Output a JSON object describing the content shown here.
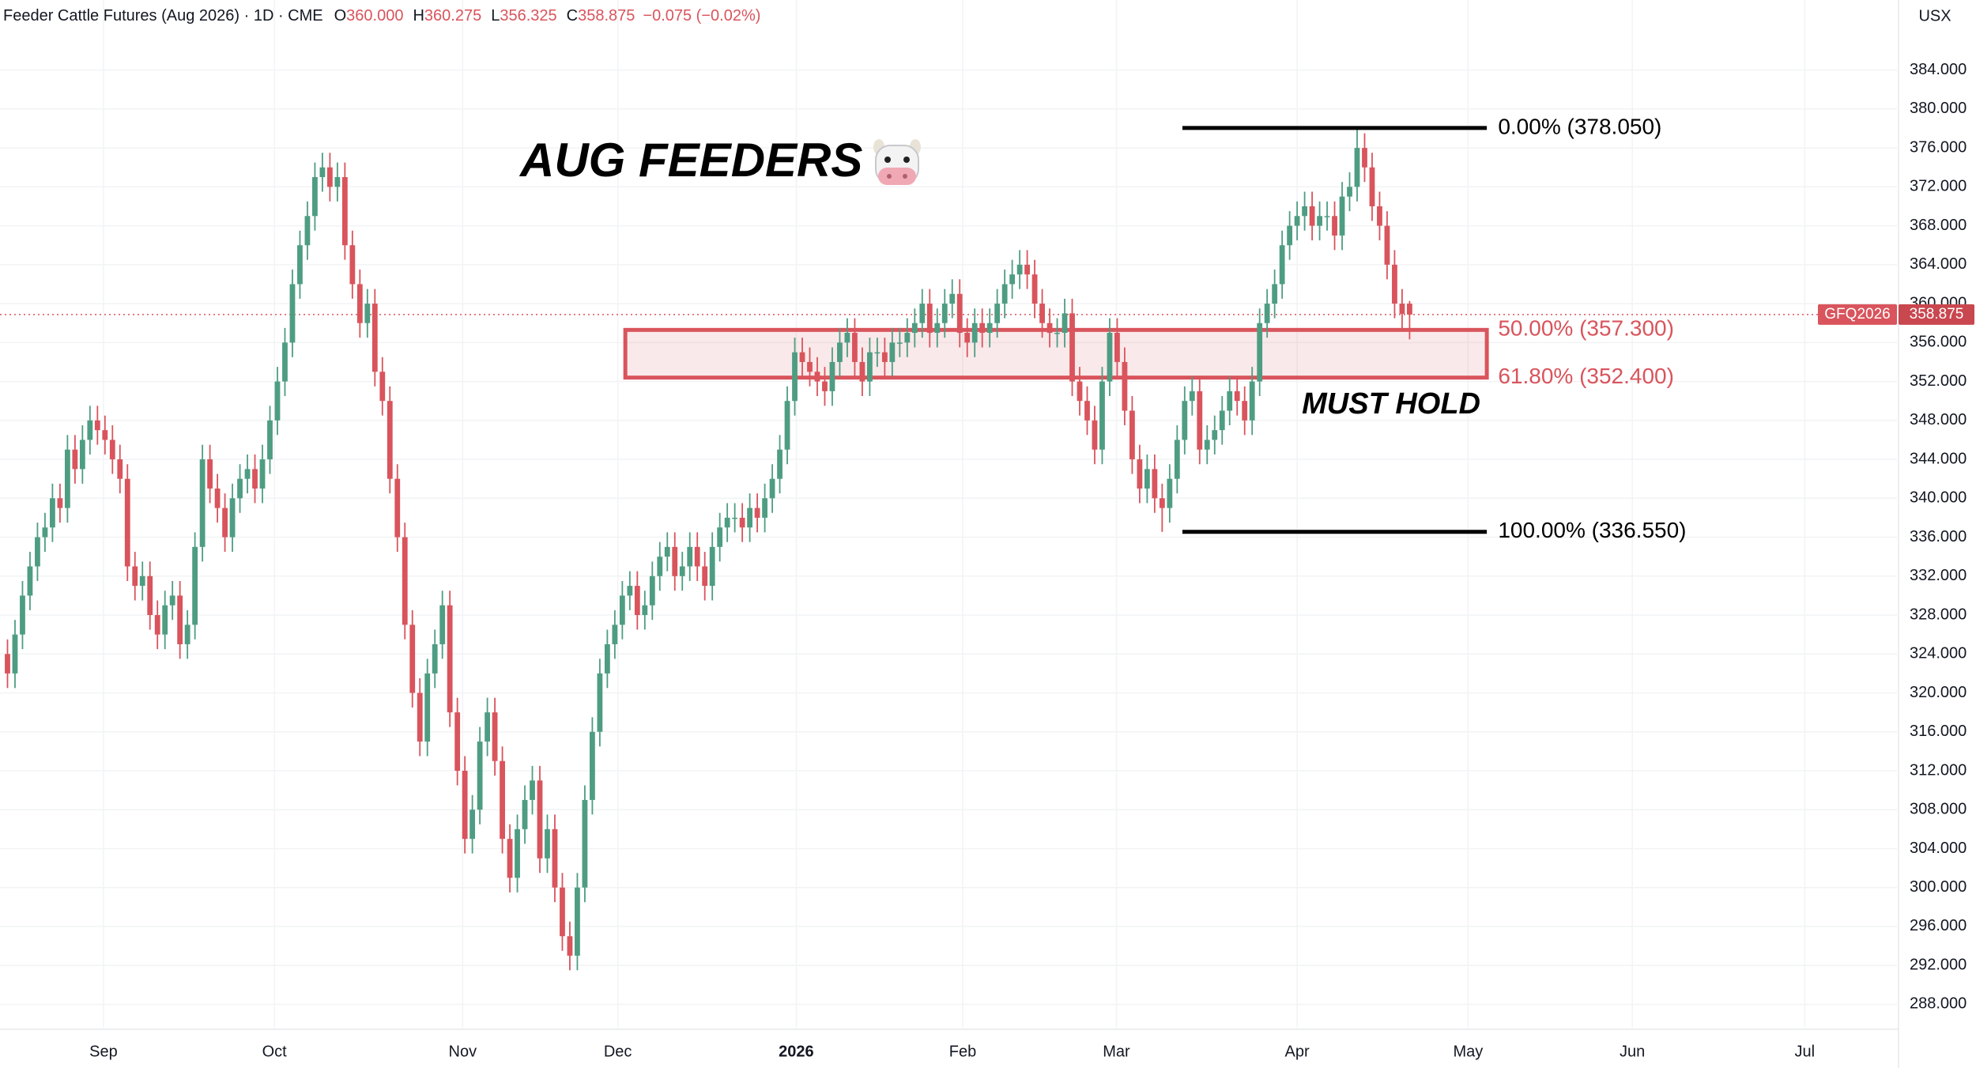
{
  "chart_data": {
    "type": "candlestick",
    "header": {
      "instrument": "Feeder Cattle Futures (Aug 2026) · 1D · CME",
      "ohlc": [
        {
          "key": "O",
          "text": "360.000"
        },
        {
          "key": "H",
          "text": "360.275"
        },
        {
          "key": "L",
          "text": "356.325"
        },
        {
          "key": "C",
          "text": "358.875"
        }
      ],
      "change": "−0.075 (−0.02%)"
    },
    "currency": "USX",
    "title": "AUG FEEDERS",
    "annotation": "MUST HOLD",
    "up_color": "#4e9d82",
    "down_color": "#d9545c",
    "grid": true,
    "last_price": {
      "symbol": "GFQ2026",
      "value": 358.875,
      "label": "358.875"
    },
    "fib_levels": [
      {
        "label": "0.00% (378.050)",
        "value": 378.05,
        "color": "#000000"
      },
      {
        "label": "50.00% (357.300)",
        "value": 357.3,
        "color": "#d9545c"
      },
      {
        "label": "61.80% (352.400)",
        "value": 352.4,
        "color": "#d9545c"
      },
      {
        "label": "100.00% (336.550)",
        "value": 336.55,
        "color": "#000000"
      }
    ],
    "ylim": [
      285.6,
      387.3
    ],
    "yticks": [
      {
        "value": 288,
        "label": "288.000"
      },
      {
        "value": 292,
        "label": "292.000"
      },
      {
        "value": 296,
        "label": "296.000"
      },
      {
        "value": 300,
        "label": "300.000"
      },
      {
        "value": 304,
        "label": "304.000"
      },
      {
        "value": 308,
        "label": "308.000"
      },
      {
        "value": 312,
        "label": "312.000"
      },
      {
        "value": 316,
        "label": "316.000"
      },
      {
        "value": 320,
        "label": "320.000"
      },
      {
        "value": 324,
        "label": "324.000"
      },
      {
        "value": 328,
        "label": "328.000"
      },
      {
        "value": 332,
        "label": "332.000"
      },
      {
        "value": 336,
        "label": "336.000"
      },
      {
        "value": 340,
        "label": "340.000"
      },
      {
        "value": 344,
        "label": "344.000"
      },
      {
        "value": 348,
        "label": "348.000"
      },
      {
        "value": 352,
        "label": "352.000"
      },
      {
        "value": 356,
        "label": "356.000"
      },
      {
        "value": 360,
        "label": "360.000"
      },
      {
        "value": 364,
        "label": "364.000"
      },
      {
        "value": 368,
        "label": "368.000"
      },
      {
        "value": 372,
        "label": "372.000"
      },
      {
        "value": 376,
        "label": "376.000"
      },
      {
        "value": 380,
        "label": "380.000"
      },
      {
        "value": 384,
        "label": "384.000"
      }
    ],
    "xlim": [
      -1,
      252
    ],
    "xticks": [
      {
        "value": 12.8,
        "label": "Sep"
      },
      {
        "value": 35.6,
        "label": "Oct"
      },
      {
        "value": 60.7,
        "label": "Nov"
      },
      {
        "value": 81.4,
        "label": "Dec"
      },
      {
        "value": 105.2,
        "label": "2026"
      },
      {
        "value": 127.4,
        "label": "Feb"
      },
      {
        "value": 147.9,
        "label": "Mar"
      },
      {
        "value": 172.0,
        "label": "Apr"
      },
      {
        "value": 194.8,
        "label": "May"
      },
      {
        "value": 216.7,
        "label": "Jun"
      },
      {
        "value": 239.7,
        "label": "Jul"
      }
    ],
    "open": [
      324,
      322,
      326,
      330,
      333,
      336,
      337,
      340,
      339,
      345,
      343,
      346,
      348,
      347,
      346,
      344,
      342,
      333,
      331,
      332,
      328,
      326,
      329,
      330,
      325,
      327,
      335,
      344,
      341,
      339,
      336,
      340,
      342,
      343,
      341,
      344,
      348,
      352,
      356,
      362,
      366,
      369,
      373,
      374,
      372,
      373,
      366,
      362,
      358,
      360,
      353,
      350,
      342,
      336,
      327,
      320,
      315,
      322,
      325,
      329,
      318,
      312,
      305,
      308,
      315,
      318,
      313,
      305,
      301,
      306,
      309,
      311,
      303,
      306,
      300,
      295,
      293,
      300,
      309,
      316,
      322,
      325,
      327,
      330,
      331,
      328,
      329,
      332,
      334,
      335,
      332,
      333,
      335,
      333,
      331,
      335,
      337,
      338,
      338,
      337,
      339,
      338,
      340,
      342,
      345,
      350,
      355,
      354,
      353,
      352,
      351,
      354,
      356,
      357,
      354,
      352,
      355,
      355,
      354,
      356,
      356,
      357,
      358,
      360,
      357,
      358,
      360,
      361,
      357,
      356,
      358,
      357,
      358,
      360,
      362,
      363,
      364,
      363,
      360,
      358,
      357,
      357,
      359,
      352,
      350,
      348,
      345,
      352,
      357,
      354,
      349,
      344,
      341,
      343,
      340,
      339,
      342,
      346,
      350,
      351,
      345,
      346,
      347,
      349,
      351,
      350,
      348,
      352,
      358,
      360,
      362,
      366,
      368,
      369,
      370,
      368,
      369,
      369,
      367,
      371,
      372,
      376,
      374,
      370,
      368,
      364,
      360,
      360
    ],
    "high": [
      325.5,
      327.5,
      331.5,
      334.5,
      337.5,
      338.5,
      341.5,
      341.5,
      346.5,
      346.5,
      347.5,
      349.5,
      349.5,
      348.5,
      347.5,
      345.5,
      343.5,
      334.5,
      333.5,
      333.5,
      329.5,
      330.5,
      331.5,
      331.5,
      328.5,
      336.5,
      345.5,
      345.5,
      342.5,
      340.5,
      341.5,
      343.5,
      344.5,
      344.5,
      345.5,
      349.5,
      353.5,
      357.5,
      363.5,
      367.5,
      370.5,
      374.5,
      375.5,
      375.5,
      374.5,
      374.5,
      367.5,
      363.5,
      361.5,
      361.5,
      354.5,
      351.5,
      343.5,
      337.5,
      328.5,
      321.5,
      323.5,
      326.5,
      330.5,
      330.5,
      319.5,
      313.5,
      309.5,
      316.5,
      319.5,
      319.5,
      314.5,
      306.5,
      307.5,
      310.5,
      312.5,
      312.5,
      307.5,
      307.5,
      301.5,
      296.5,
      301.5,
      310.5,
      317.5,
      323.5,
      326.5,
      328.5,
      331.5,
      332.5,
      332.5,
      330.5,
      333.5,
      335.5,
      336.5,
      336.5,
      334.5,
      336.5,
      336.5,
      334.5,
      336.5,
      338.5,
      339.5,
      339.5,
      339.5,
      340.5,
      340.5,
      341.5,
      343.5,
      346.5,
      351.5,
      356.5,
      356.5,
      355.5,
      354.5,
      353.5,
      355.5,
      357.5,
      358.5,
      358.5,
      355.5,
      356.5,
      356.5,
      356.5,
      357.5,
      357.5,
      358.5,
      359.5,
      361.5,
      361.5,
      359.5,
      361.5,
      362.5,
      362.5,
      358.5,
      359.5,
      359.5,
      359.5,
      361.5,
      363.5,
      364.5,
      365.5,
      365.5,
      364.5,
      361.5,
      359.5,
      358.5,
      360.5,
      360.5,
      353.5,
      351.5,
      349.5,
      353.5,
      358.5,
      358.5,
      355.5,
      350.5,
      345.5,
      344.5,
      344.5,
      341.5,
      343.5,
      347.5,
      351.5,
      352.5,
      352.5,
      347.5,
      348.5,
      350.5,
      352.5,
      352.5,
      351.5,
      353.5,
      359.5,
      361.5,
      363.5,
      367.5,
      369.5,
      370.5,
      371.5,
      371.5,
      370.5,
      370.5,
      370.5,
      372.5,
      373.5,
      378.05,
      377.5,
      375.5,
      371.5,
      369.5,
      365.5,
      361.5,
      360.275
    ],
    "low": [
      320.5,
      320.5,
      324.5,
      328.5,
      331.5,
      334.5,
      335.5,
      337.5,
      337.5,
      341.5,
      341.5,
      344.5,
      345.5,
      344.5,
      342.5,
      340.5,
      331.5,
      329.5,
      329.5,
      326.5,
      324.5,
      324.5,
      327.5,
      323.5,
      323.5,
      325.5,
      333.5,
      339.5,
      337.5,
      334.5,
      334.5,
      338.5,
      340.5,
      339.5,
      339.5,
      342.5,
      346.5,
      350.5,
      354.5,
      360.5,
      364.5,
      367.5,
      371.5,
      370.5,
      370.5,
      364.5,
      360.5,
      356.5,
      356.5,
      351.5,
      348.5,
      340.5,
      334.5,
      325.5,
      318.5,
      313.5,
      313.5,
      320.5,
      323.5,
      316.5,
      310.5,
      303.5,
      303.5,
      306.5,
      313.5,
      311.5,
      303.5,
      299.5,
      299.5,
      304.5,
      307.5,
      301.5,
      301.5,
      298.5,
      293.5,
      291.5,
      291.5,
      298.5,
      307.5,
      314.5,
      320.5,
      323.5,
      325.5,
      328.5,
      326.5,
      326.5,
      327.5,
      330.5,
      332.5,
      330.5,
      330.5,
      331.5,
      331.5,
      329.5,
      329.5,
      333.5,
      335.5,
      336.5,
      335.5,
      335.5,
      336.5,
      336.5,
      338.5,
      340.5,
      343.5,
      348.5,
      352.5,
      351.5,
      350.5,
      349.5,
      349.5,
      352.5,
      354.5,
      352.5,
      350.5,
      350.5,
      353.5,
      352.5,
      352.5,
      354.5,
      354.5,
      355.5,
      356.5,
      355.5,
      355.5,
      356.5,
      358.5,
      355.5,
      354.5,
      354.5,
      355.5,
      355.5,
      356.5,
      358.5,
      360.5,
      361.5,
      361.5,
      358.5,
      356.5,
      355.5,
      355.5,
      355.5,
      350.5,
      348.5,
      346.5,
      343.5,
      343.5,
      350.5,
      352.5,
      347.5,
      342.5,
      339.5,
      339.5,
      338.5,
      336.55,
      337.5,
      340.5,
      344.5,
      348.5,
      343.5,
      343.5,
      344.5,
      345.5,
      347.5,
      348.5,
      346.5,
      346.5,
      350.5,
      356.5,
      358.5,
      360.5,
      364.5,
      366.5,
      367.5,
      366.5,
      366.5,
      367.5,
      365.5,
      365.5,
      369.5,
      370.5,
      372.5,
      368.5,
      366.5,
      362.5,
      358.5,
      357.45,
      356.325
    ],
    "close": [
      322,
      326,
      330,
      333,
      336,
      337,
      340,
      339,
      345,
      343,
      346,
      348,
      347,
      346,
      344,
      342,
      333,
      331,
      332,
      328,
      326,
      329,
      330,
      325,
      327,
      335,
      344,
      341,
      339,
      336,
      340,
      342,
      343,
      341,
      344,
      348,
      352,
      356,
      362,
      366,
      369,
      373,
      374,
      372,
      373,
      366,
      362,
      358,
      360,
      353,
      350,
      342,
      336,
      327,
      320,
      315,
      322,
      325,
      329,
      318,
      312,
      305,
      308,
      315,
      318,
      313,
      305,
      301,
      306,
      309,
      311,
      303,
      306,
      300,
      295,
      293,
      300,
      309,
      316,
      322,
      325,
      327,
      330,
      331,
      328,
      329,
      332,
      334,
      335,
      332,
      333,
      335,
      333,
      331,
      335,
      337,
      338,
      338,
      337,
      339,
      338,
      340,
      342,
      345,
      350,
      355,
      354,
      353,
      352,
      351,
      354,
      356,
      357,
      354,
      352,
      355,
      355,
      354,
      356,
      356,
      357,
      358,
      360,
      357,
      358,
      360,
      361,
      357,
      356,
      358,
      357,
      358,
      360,
      362,
      363,
      364,
      363,
      360,
      358,
      357,
      357,
      359,
      352,
      350,
      348,
      345,
      352,
      357,
      354,
      349,
      344,
      341,
      343,
      340,
      339,
      342,
      346,
      350,
      351,
      345,
      346,
      347,
      349,
      351,
      350,
      348,
      352,
      358,
      360,
      362,
      366,
      368,
      369,
      370,
      368,
      369,
      369,
      367,
      371,
      372,
      376,
      374,
      370,
      368,
      364,
      360,
      358.95,
      358.875
    ]
  }
}
